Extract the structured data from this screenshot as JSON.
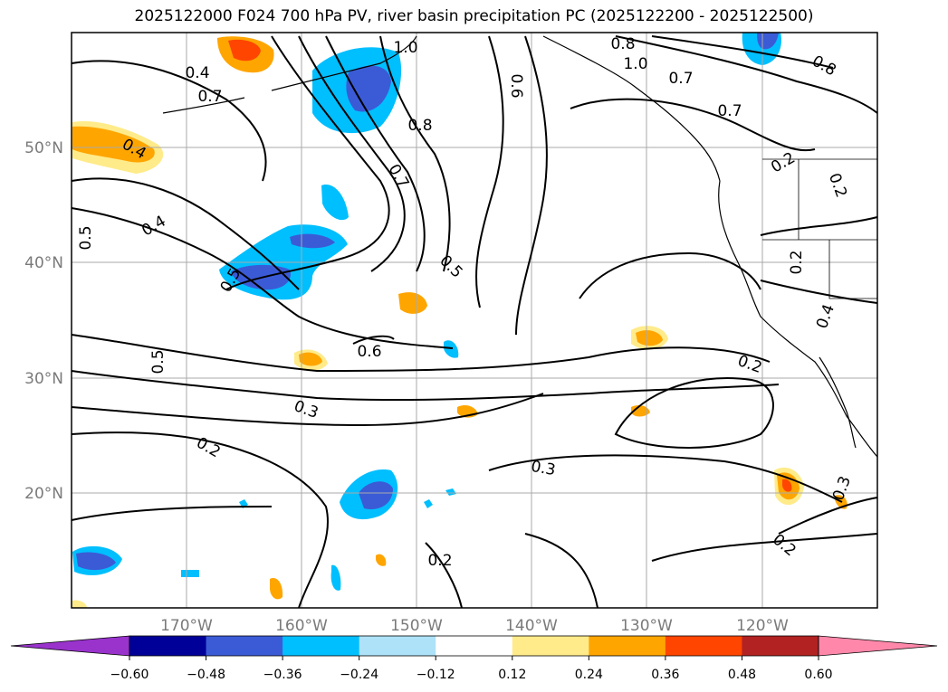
{
  "title": "2025122000 F024 700 hPa PV, river basin precipitation PC (2025122200 - 2025122500)",
  "map": {
    "projection": "PlateCarree",
    "lon_range": [
      -180,
      -110
    ],
    "lat_range": [
      10,
      60
    ],
    "grid": true,
    "lat_ticks": [
      "50°N",
      "40°N",
      "30°N",
      "20°N"
    ],
    "lon_ticks": [
      "170°W",
      "160°W",
      "150°W",
      "140°W",
      "130°W",
      "120°W"
    ],
    "contour_variable": "700 hPa PV",
    "contour_labels": [
      "0.4",
      "0.7",
      "1.0",
      "0.8",
      "0.6",
      "0.8",
      "1.0",
      "0.8",
      "0.7",
      "0.7",
      "0.4",
      "0.2",
      "0.5",
      "0.4",
      "0.7",
      "0.5",
      "0.5",
      "0.6",
      "0.5",
      "0.2",
      "0.2",
      "0.4",
      "0.2",
      "0.3",
      "0.2",
      "0.3",
      "0.2",
      "0.3",
      "0.2"
    ],
    "shading_variable": "river basin precipitation PC"
  },
  "colorbar": {
    "ticks": [
      "−0.60",
      "−0.48",
      "−0.36",
      "−0.24",
      "−0.12",
      "0.12",
      "0.24",
      "0.36",
      "0.48",
      "0.60"
    ],
    "colors": [
      "#9933cc",
      "#000099",
      "#3b5bd6",
      "#00bfff",
      "#aee2f8",
      "#ffffff",
      "#ffeb8a",
      "#ffa500",
      "#ff4500",
      "#b22222",
      "#ff88aa"
    ],
    "extend": "both"
  }
}
